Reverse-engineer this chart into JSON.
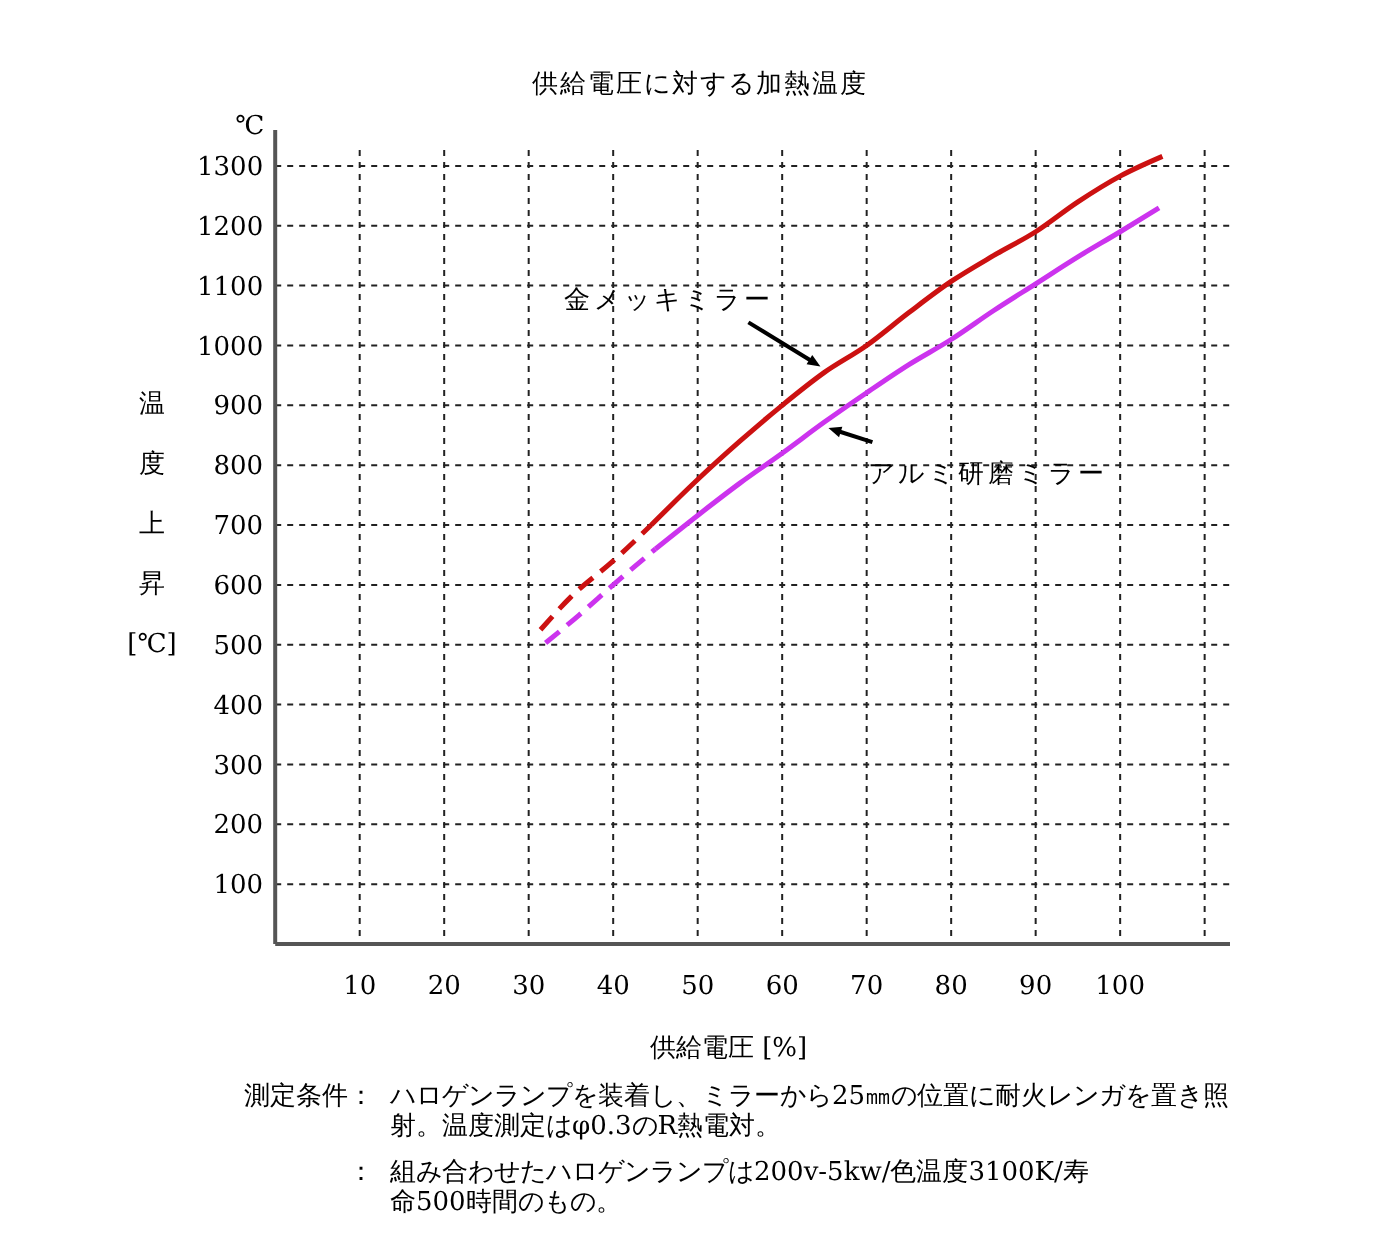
{
  "chart_data": {
    "type": "line",
    "title": "供給電圧に対する加熱温度",
    "xlabel": "供給電圧 [%]",
    "ylabel": "温度上昇[℃]",
    "annotations": [
      "℃",
      "測定条件：ハロゲンランプを装着し、ミラーから25㎜の位置に耐火レンガを置き照射。温度測定はφ0.3のR熱電対。",
      "：組み合わせたハロゲンランプは200v-5kw/色温度3100K/寿命500時間のもの。"
    ],
    "xlim": [
      0,
      113
    ],
    "ylim": [
      0,
      1360
    ],
    "xticks": [
      10,
      20,
      30,
      40,
      50,
      60,
      70,
      80,
      90,
      100,
      {
        "value": 110,
        "label": null
      }
    ],
    "yticks": [
      100,
      200,
      300,
      400,
      500,
      600,
      700,
      800,
      900,
      1000,
      1100,
      1200,
      1300
    ],
    "grid": true,
    "marker": "none",
    "series": [
      {
        "color": "#cc1111",
        "line_style": "dashed",
        "x": [
          31.4,
          35,
          40,
          44.5
        ],
        "values": [
          525,
          580,
          640,
          700
        ]
      },
      {
        "name": "金メッキミラー",
        "color": "#cc1111",
        "line_style": "solid",
        "x": [
          44.5,
          50,
          55,
          60,
          65,
          70,
          75,
          80,
          85,
          90,
          95,
          100,
          105
        ],
        "values": [
          700,
          776,
          840,
          900,
          955,
          1000,
          1055,
          1107,
          1150,
          1190,
          1240,
          1283,
          1316
        ]
      },
      {
        "color": "#cc33ee",
        "line_style": "dashed",
        "x": [
          32,
          36,
          40,
          45
        ],
        "values": [
          503,
          550,
          600,
          660
        ]
      },
      {
        "name": "アルミ研磨ミラー",
        "color": "#cc33ee",
        "line_style": "solid",
        "x": [
          45,
          50,
          55,
          60,
          65,
          70,
          75,
          80,
          85,
          90,
          95,
          100,
          104.6
        ],
        "values": [
          660,
          716,
          770,
          820,
          872,
          921,
          968,
          1010,
          1058,
          1103,
          1148,
          1190,
          1230
        ]
      }
    ]
  }
}
